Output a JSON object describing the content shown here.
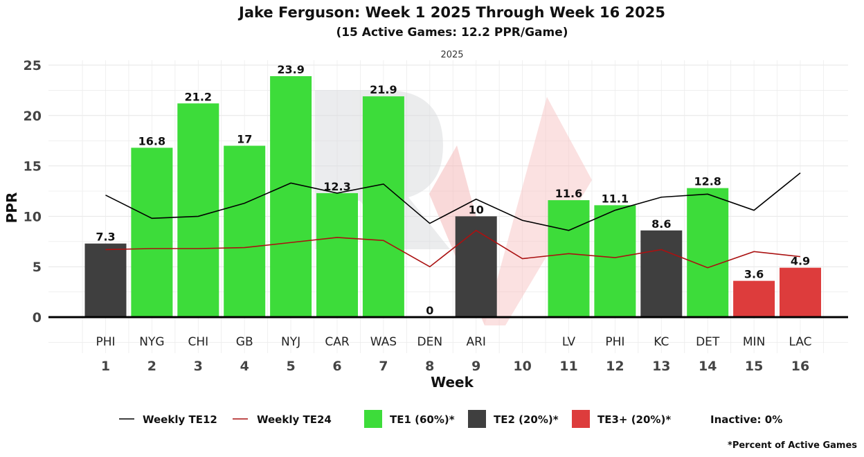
{
  "chart_data": {
    "type": "bar",
    "title": "Jake Ferguson: Week 1 2025 Through Week 16 2025",
    "subtitle": "(15 Active Games: 12.2 PPR/Game)",
    "facet_label": "2025",
    "xlabel": "Week",
    "ylabel": "PPR",
    "ylim": [
      0,
      25
    ],
    "yticks": [
      "0",
      "5",
      "10",
      "15",
      "20",
      "25"
    ],
    "weeks": [
      "1",
      "2",
      "3",
      "4",
      "5",
      "6",
      "7",
      "8",
      "9",
      "10",
      "11",
      "12",
      "13",
      "14",
      "15",
      "16"
    ],
    "opponents": [
      "PHI",
      "NYG",
      "CHI",
      "GB",
      "NYJ",
      "CAR",
      "WAS",
      "DEN",
      "ARI",
      "",
      "LV",
      "PHI",
      "KC",
      "DET",
      "MIN",
      "LAC"
    ],
    "bars": [
      {
        "week": 1,
        "value": 7.3,
        "label": "7.3",
        "tier": "TE2"
      },
      {
        "week": 2,
        "value": 16.8,
        "label": "16.8",
        "tier": "TE1"
      },
      {
        "week": 3,
        "value": 21.2,
        "label": "21.2",
        "tier": "TE1"
      },
      {
        "week": 4,
        "value": 17,
        "label": "17",
        "tier": "TE1"
      },
      {
        "week": 5,
        "value": 23.9,
        "label": "23.9",
        "tier": "TE1"
      },
      {
        "week": 6,
        "value": 12.3,
        "label": "12.3",
        "tier": "TE1"
      },
      {
        "week": 7,
        "value": 21.9,
        "label": "21.9",
        "tier": "TE1"
      },
      {
        "week": 8,
        "value": 0,
        "label": "0",
        "tier": "TE3+"
      },
      {
        "week": 9,
        "value": 10,
        "label": "10",
        "tier": "TE2"
      },
      {
        "week": 11,
        "value": 11.6,
        "label": "11.6",
        "tier": "TE1"
      },
      {
        "week": 12,
        "value": 11.1,
        "label": "11.1",
        "tier": "TE1"
      },
      {
        "week": 13,
        "value": 8.6,
        "label": "8.6",
        "tier": "TE2"
      },
      {
        "week": 14,
        "value": 12.8,
        "label": "12.8",
        "tier": "TE1"
      },
      {
        "week": 15,
        "value": 3.6,
        "label": "3.6",
        "tier": "TE3+"
      },
      {
        "week": 16,
        "value": 4.9,
        "label": "4.9",
        "tier": "TE3+"
      }
    ],
    "series": [
      {
        "name": "Weekly TE12",
        "color": "#000000",
        "values": [
          12.1,
          9.8,
          10.0,
          11.3,
          13.3,
          12.3,
          13.2,
          9.3,
          11.7,
          9.6,
          8.6,
          10.6,
          11.9,
          12.2,
          10.6,
          14.3
        ]
      },
      {
        "name": "Weekly TE24",
        "color": "#aa1111",
        "values": [
          6.7,
          6.8,
          6.8,
          6.9,
          7.4,
          7.9,
          7.6,
          5.0,
          8.6,
          5.8,
          6.3,
          5.9,
          6.7,
          4.9,
          6.5,
          6.0
        ]
      }
    ],
    "tier_colors": {
      "TE1": "#3ddc3a",
      "TE2": "#3f3f3f",
      "TE3+": "#dd3c3c"
    },
    "legend": {
      "te12": "Weekly TE12",
      "te24": "Weekly TE24",
      "te1": "TE1 (60%)*",
      "te2": "TE2 (20%)*",
      "te3": "TE3+ (20%)*",
      "inactive": "Inactive: 0%",
      "footnote": "*Percent of Active Games"
    }
  }
}
